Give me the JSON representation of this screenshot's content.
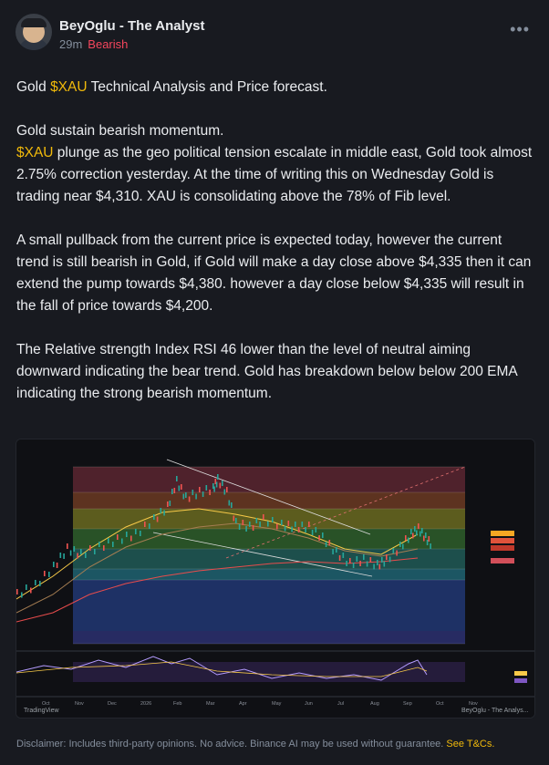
{
  "author": {
    "name": "BeyOglu - The Analyst",
    "time": "29m",
    "sentiment": "Bearish"
  },
  "more_icon": "more-icon",
  "post": {
    "title_prefix": "Gold ",
    "title_ticker": "$XAU",
    "title_rest": " Technical Analysis and Price forecast.",
    "p1": "Gold sustain bearish momentum.",
    "p2_ticker": "$XAU",
    "p2_rest": " plunge as the geo political tension escalate in middle east, Gold took almost 2.75% correction yesterday. At the time of writing this on Wednesday Gold is trading near $4,310. XAU is consolidating above the 78% of Fib level.",
    "p3": "A small pullback from the current price is expected today, however the current trend is still bearish in Gold, if Gold will make a day close above $4,335 then it can extend the pump towards $4,380. however a day close below $4,335 will result in the fall of price towards $4,200.",
    "p4": "The Relative strength Index RSI 46 lower than the level of neutral aiming downward indicating the bear trend. Gold has breakdown below below 200 EMA indicating the strong bearish momentum."
  },
  "chart": {
    "watermark_left": "TradingView",
    "watermark_right": "BeyOglu - The Analys...",
    "x_ticks": [
      "Oct",
      "Nov",
      "Dec",
      "2026",
      "Feb",
      "Mar",
      "Apr",
      "May",
      "Jun",
      "Jul",
      "Aug",
      "Sep",
      "Oct",
      "Nov"
    ],
    "colors": {
      "bull": "#26a69a",
      "bear": "#ef5350",
      "ema": "#f7c948",
      "ema200": "#e84c4c"
    }
  },
  "disclaimer": {
    "text": "Disclaimer: Includes third-party opinions. No advice. Binance AI may be used without guarantee. ",
    "link": "See T&Cs."
  }
}
